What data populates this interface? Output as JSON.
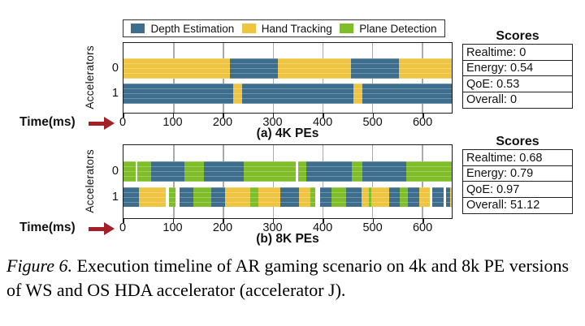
{
  "colors": {
    "arrow": "#A42028",
    "gridline": "#ABABAB",
    "border": "#1B1B1B"
  },
  "task_colors": {
    "Depth Estimation": "#3E6E8E",
    "Hand Tracking": "#EFC440",
    "Plane Detection": "#7FBE28"
  },
  "legend": {
    "items": [
      {
        "label": "Depth Estimation",
        "task": "Depth Estimation"
      },
      {
        "label": "Hand Tracking",
        "task": "Hand Tracking"
      },
      {
        "label": "Plane Detection",
        "task": "Plane Detection"
      }
    ]
  },
  "chart_data": [
    {
      "type": "timeline",
      "title": "(a) 4K PEs",
      "xlabel": "Time(ms)",
      "ylabel": "Accelerators",
      "xlim": [
        0,
        660
      ],
      "xticks": [
        0,
        100,
        200,
        300,
        400,
        500,
        600
      ],
      "grid": true,
      "rows": [
        {
          "label": "0",
          "segments": [
            [
              "Hand Tracking",
              0,
              214
            ],
            [
              "Depth Estimation",
              214,
              311
            ],
            [
              "Hand Tracking",
              311,
              457
            ],
            [
              "Depth Estimation",
              457,
              554
            ],
            [
              "Hand Tracking",
              554,
              660
            ]
          ]
        },
        {
          "label": "1",
          "segments": [
            [
              "Depth Estimation",
              0,
              221
            ],
            [
              "Hand Tracking",
              221,
              239
            ],
            [
              "Depth Estimation",
              239,
              462
            ],
            [
              "Hand Tracking",
              462,
              481
            ],
            [
              "Depth Estimation",
              481,
              660
            ]
          ]
        }
      ],
      "scores": {
        "title": "Scores",
        "items": [
          "Realtime: 0",
          "Energy: 0.54",
          "QoE: 0.53",
          "Overall: 0"
        ]
      }
    },
    {
      "type": "timeline",
      "title": "(b) 8K PEs",
      "xlabel": "Time(ms)",
      "ylabel": "Accelerators",
      "xlim": [
        0,
        660
      ],
      "xticks": [
        0,
        100,
        200,
        300,
        400,
        500,
        600
      ],
      "grid": true,
      "rows": [
        {
          "label": "0",
          "segments": [
            [
              "Plane Detection",
              0,
              24
            ],
            [
              "Plane Detection",
              28,
              55
            ],
            [
              "Depth Estimation",
              55,
              122
            ],
            [
              "Plane Detection",
              122,
              161
            ],
            [
              "Depth Estimation",
              161,
              242
            ],
            [
              "Plane Detection",
              242,
              346
            ],
            [
              "Plane Detection",
              351,
              367
            ],
            [
              "Depth Estimation",
              367,
              459
            ],
            [
              "Plane Detection",
              459,
              481
            ],
            [
              "Depth Estimation",
              481,
              569
            ],
            [
              "Plane Detection",
              569,
              660
            ]
          ]
        },
        {
          "label": "1",
          "segments": [
            [
              "Depth Estimation",
              0,
              31
            ],
            [
              "Hand Tracking",
              31,
              85
            ],
            [
              "Plane Detection",
              91,
              104
            ],
            [
              "Depth Estimation",
              112,
              141
            ],
            [
              "Plane Detection",
              141,
              177
            ],
            [
              "Depth Estimation",
              177,
              204
            ],
            [
              "Hand Tracking",
              204,
              255
            ],
            [
              "Plane Detection",
              255,
              272
            ],
            [
              "Hand Tracking",
              272,
              315
            ],
            [
              "Depth Estimation",
              315,
              353
            ],
            [
              "Hand Tracking",
              353,
              375
            ],
            [
              "Plane Detection",
              375,
              385
            ],
            [
              "Depth Estimation",
              395,
              418
            ],
            [
              "Plane Detection",
              418,
              448
            ],
            [
              "Depth Estimation",
              448,
              478
            ],
            [
              "Hand Tracking",
              478,
              494
            ],
            [
              "Plane Detection",
              494,
              499
            ],
            [
              "Hand Tracking",
              499,
              535
            ],
            [
              "Depth Estimation",
              535,
              556
            ],
            [
              "Plane Detection",
              556,
              571
            ],
            [
              "Depth Estimation",
              571,
              595
            ],
            [
              "Hand Tracking",
              595,
              616
            ],
            [
              "Depth Estimation",
              621,
              644
            ],
            [
              "Depth Estimation",
              649,
              656
            ],
            [
              "Hand Tracking",
              656,
              660
            ]
          ]
        }
      ],
      "scores": {
        "title": "Scores",
        "items": [
          "Realtime: 0.68",
          "Energy: 0.79",
          "QoE: 0.97",
          "Overall: 51.12"
        ]
      }
    }
  ],
  "caption": {
    "label": "Figure 6.",
    "text": "Execution timeline of AR gaming scenario on 4k and 8k PE versions of WS and OS HDA accelerator (accelerator J)."
  }
}
